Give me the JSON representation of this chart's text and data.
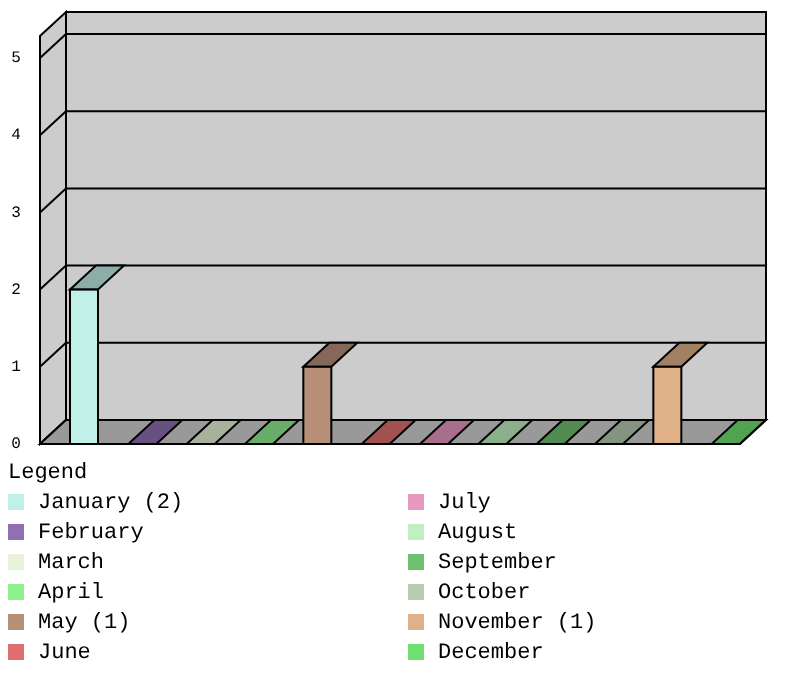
{
  "chart_data": {
    "type": "bar",
    "legend_title": "Legend",
    "categories": [
      null,
      null,
      null,
      null,
      null,
      null,
      null,
      null,
      null,
      null,
      null,
      null
    ],
    "series": [
      {
        "name": "January (2)",
        "color": "#c0f0e8",
        "values": [
          2,
          null,
          null,
          null,
          null,
          null,
          null,
          null,
          null,
          null,
          null,
          null
        ]
      },
      {
        "name": "February",
        "color": "#9070b0",
        "values": [
          null,
          0,
          null,
          null,
          null,
          null,
          null,
          null,
          null,
          null,
          null,
          null
        ]
      },
      {
        "name": "March",
        "color": "#e8f4d8",
        "values": [
          null,
          null,
          0,
          null,
          null,
          null,
          null,
          null,
          null,
          null,
          null,
          null
        ]
      },
      {
        "name": "April",
        "color": "#90f090",
        "values": [
          null,
          null,
          null,
          0,
          null,
          null,
          null,
          null,
          null,
          null,
          null,
          null
        ]
      },
      {
        "name": "May (1)",
        "color": "#b89078",
        "values": [
          null,
          null,
          null,
          null,
          1,
          null,
          null,
          null,
          null,
          null,
          null,
          null
        ]
      },
      {
        "name": "June",
        "color": "#e07070",
        "values": [
          null,
          null,
          null,
          null,
          null,
          0,
          null,
          null,
          null,
          null,
          null,
          null
        ]
      },
      {
        "name": "July",
        "color": "#e898c0",
        "values": [
          null,
          null,
          null,
          null,
          null,
          null,
          0,
          null,
          null,
          null,
          null,
          null
        ]
      },
      {
        "name": "August",
        "color": "#c0f0c0",
        "values": [
          null,
          null,
          null,
          null,
          null,
          null,
          null,
          0,
          null,
          null,
          null,
          null
        ]
      },
      {
        "name": "September",
        "color": "#70c070",
        "values": [
          null,
          null,
          null,
          null,
          null,
          null,
          null,
          null,
          0,
          null,
          null,
          null
        ]
      },
      {
        "name": "October",
        "color": "#b8ccb0",
        "values": [
          null,
          null,
          null,
          null,
          null,
          null,
          null,
          null,
          null,
          0,
          null,
          null
        ]
      },
      {
        "name": "November (1)",
        "color": "#e0b088",
        "values": [
          null,
          null,
          null,
          null,
          null,
          null,
          null,
          null,
          null,
          null,
          1,
          null
        ]
      },
      {
        "name": "December",
        "color": "#70e070",
        "values": [
          null,
          null,
          null,
          null,
          null,
          null,
          null,
          null,
          null,
          null,
          null,
          0
        ]
      }
    ],
    "ylim": [
      0,
      5
    ],
    "yticks": [
      0,
      1,
      2,
      3,
      4,
      5
    ],
    "grid": "y",
    "legend": "bottom",
    "tick_labels": "y"
  }
}
